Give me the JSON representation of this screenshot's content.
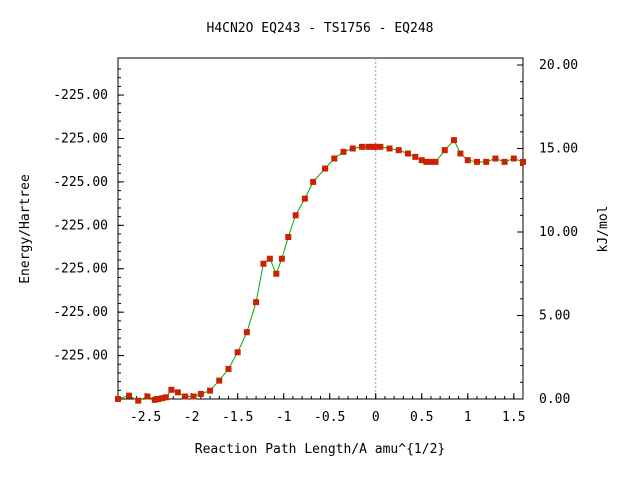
{
  "chart_data": {
    "type": "line",
    "title": "H4CN2O   EQ243 - TS1756 - EQ248",
    "xlabel": "Reaction Path Length/A amu^{1/2}",
    "ylabel_left": "Energy/Hartree",
    "ylabel_right": "kJ/mol",
    "xlim": [
      -2.8,
      1.6
    ],
    "ylim_right": [
      0,
      20
    ],
    "x_ticks": [
      {
        "value": -2.5,
        "label": "-2.5"
      },
      {
        "value": -2,
        "label": "-2"
      },
      {
        "value": -1.5,
        "label": "-1.5"
      },
      {
        "value": -1,
        "label": "-1"
      },
      {
        "value": -0.5,
        "label": "-0.5"
      },
      {
        "value": 0,
        "label": "0"
      },
      {
        "value": 0.5,
        "label": "0.5"
      },
      {
        "value": 1,
        "label": "1"
      },
      {
        "value": 1.5,
        "label": "1.5"
      }
    ],
    "left_ticks": [
      {
        "value": 2.6,
        "label": "-225.00"
      },
      {
        "value": 5.2,
        "label": "-225.00"
      },
      {
        "value": 7.8,
        "label": "-225.00"
      },
      {
        "value": 10.4,
        "label": "-225.00"
      },
      {
        "value": 13.0,
        "label": "-225.00"
      },
      {
        "value": 15.6,
        "label": "-225.00"
      },
      {
        "value": 18.2,
        "label": "-225.00"
      }
    ],
    "right_ticks": [
      {
        "value": 0,
        "label": "0.00"
      },
      {
        "value": 5,
        "label": "5.00"
      },
      {
        "value": 10,
        "label": "10.00"
      },
      {
        "value": 15,
        "label": "15.00"
      },
      {
        "value": 20,
        "label": "20.00"
      }
    ],
    "ts_marker_x": 0,
    "series": [
      {
        "x": [
          -2.8,
          -2.68,
          -2.58,
          -2.48,
          -2.4,
          -2.36,
          -2.32,
          -2.28,
          -2.22,
          -2.15,
          -2.07,
          -1.98,
          -1.9,
          -1.8,
          -1.7,
          -1.6,
          -1.5,
          -1.4,
          -1.3,
          -1.22,
          -1.15,
          -1.08,
          -1.02,
          -0.95,
          -0.87,
          -0.77,
          -0.68,
          -0.55,
          -0.45,
          -0.35,
          -0.25,
          -0.15,
          -0.08,
          -0.03,
          0,
          0.05,
          0.15,
          0.25,
          0.35,
          0.43,
          0.5,
          0.55,
          0.6,
          0.65,
          0.75,
          0.85,
          0.92,
          1.0,
          1.1,
          1.2,
          1.3,
          1.4,
          1.5,
          1.6
        ],
        "y": [
          0.0,
          0.2,
          -0.1,
          0.15,
          -0.05,
          0.0,
          0.05,
          0.1,
          0.55,
          0.4,
          0.15,
          0.15,
          0.3,
          0.5,
          1.1,
          1.8,
          2.8,
          4.0,
          5.8,
          8.1,
          8.4,
          7.5,
          8.4,
          9.7,
          11.0,
          12.0,
          13.0,
          13.8,
          14.4,
          14.8,
          15.0,
          15.1,
          15.1,
          15.1,
          15.1,
          15.1,
          15.0,
          14.9,
          14.7,
          14.5,
          14.3,
          14.2,
          14.2,
          14.2,
          14.9,
          15.5,
          14.7,
          14.3,
          14.2,
          14.2,
          14.4,
          14.2,
          14.4,
          14.2
        ]
      }
    ],
    "colors": {
      "line": "#00aa00",
      "marker": "#cc2200",
      "dashed_line": "#999999"
    }
  }
}
